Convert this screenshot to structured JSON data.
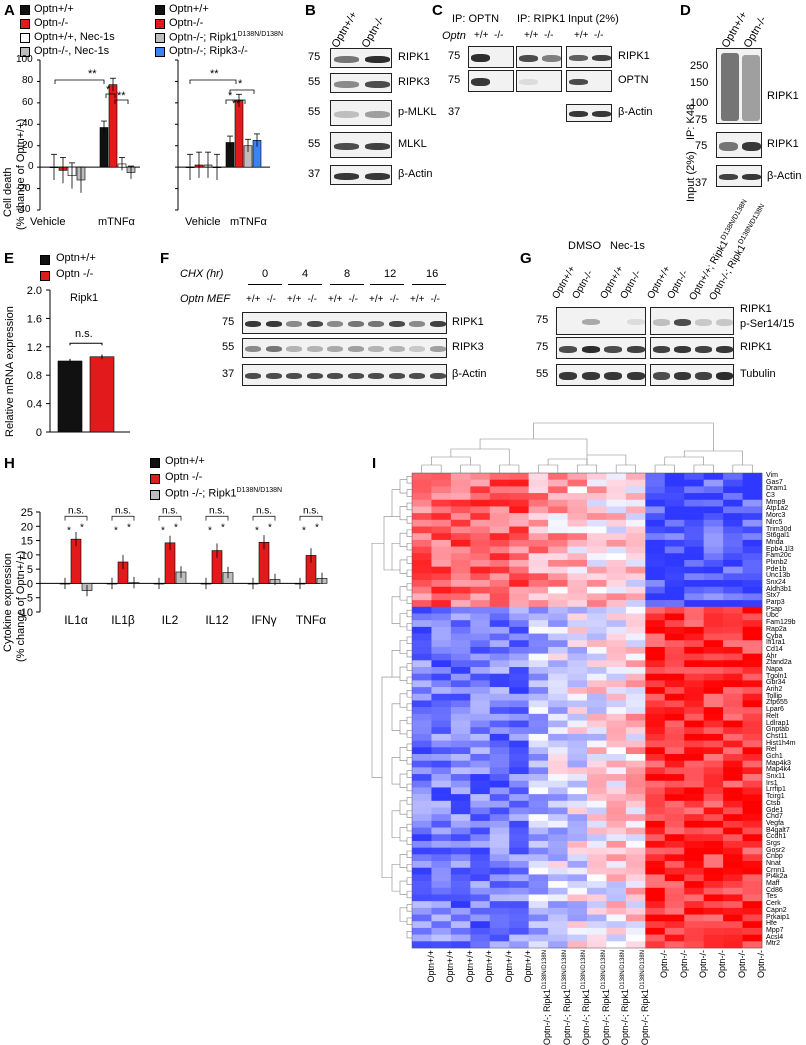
{
  "colors": {
    "wt": "#111111",
    "ko": "#e31a1c",
    "grey": "#bdbdbd",
    "blue": "#3b82f6",
    "white": "#ffffff"
  },
  "panelA": {
    "label": "A",
    "legend": [
      "Optn+/+",
      "Optn-/-",
      "Optn+/+, Nec-1s",
      "Optn-/-, Nec-1s",
      "Optn+/+",
      "Optn-/-",
      "Optn-/-; Ripk1",
      "D138N/D138N",
      "Optn-/-; Ripk3-/-"
    ],
    "ylabel1": "Cell death",
    "ylabel2": "(% change of Optn+/+)",
    "yticks": [
      "100",
      "80",
      "60",
      "40",
      "20",
      "0",
      "-20",
      "-40"
    ],
    "xcats": [
      "Vehicle",
      "mTNFα"
    ],
    "sig": [
      "**",
      "*",
      "**",
      "**",
      "*",
      "**",
      "*"
    ],
    "chart_left": {
      "type": "bar",
      "categories": [
        "Vehicle",
        "mTNFα"
      ],
      "series": [
        {
          "name": "Optn+/+",
          "values": [
            0,
            37
          ]
        },
        {
          "name": "Optn-/-",
          "values": [
            -3,
            77
          ]
        },
        {
          "name": "Optn+/+, Nec-1s",
          "values": [
            -8,
            3
          ]
        },
        {
          "name": "Optn-/-, Nec-1s",
          "values": [
            -12,
            -5
          ]
        }
      ],
      "ylim": [
        -40,
        100
      ]
    },
    "chart_right": {
      "type": "bar",
      "categories": [
        "Vehicle",
        "mTNFα"
      ],
      "series": [
        {
          "name": "Optn+/+",
          "values": [
            0,
            23
          ]
        },
        {
          "name": "Optn-/-",
          "values": [
            2,
            62
          ]
        },
        {
          "name": "Optn-/-; Ripk1 D138N/D138N",
          "values": [
            2,
            20
          ]
        },
        {
          "name": "Optn-/-; Ripk3-/-",
          "values": [
            0,
            25
          ]
        }
      ],
      "ylim": [
        -40,
        100
      ]
    }
  },
  "panelB": {
    "label": "B",
    "cols": [
      "Optn+/+",
      "Optn-/-"
    ],
    "mw": [
      "75",
      "55",
      "55",
      "55",
      "37"
    ],
    "rows": [
      "RIPK1",
      "RIPK3",
      "p-MLKL",
      "MLKL",
      "β-Actin"
    ]
  },
  "panelC": {
    "label": "C",
    "ip1": "IP: OPTN",
    "ip2": "IP: RIPK1",
    "input": "Input (2%)",
    "optn": "Optn",
    "geno": [
      "+/+",
      "-/-",
      "+/+",
      "-/-",
      "+/+",
      "-/-"
    ],
    "mw": [
      "75",
      "75",
      "37"
    ],
    "rows": [
      "RIPK1",
      "OPTN",
      "β-Actin"
    ]
  },
  "panelD": {
    "label": "D",
    "cols": [
      "Optn+/+",
      "Optn-/-"
    ],
    "mw": [
      "250",
      "150",
      "100",
      "75",
      "75",
      "37"
    ],
    "ip": "IP: K48",
    "input": "Input (2%)",
    "rows": [
      "RIPK1",
      "RIPK1",
      "β-Actin"
    ]
  },
  "panelE": {
    "label": "E",
    "legend": [
      "Optn+/+",
      "Optn -/-"
    ],
    "gene": "Ripk1",
    "ylabel": "Relative mRNA expression",
    "yticks": [
      "2.0",
      "1.6",
      "1.2",
      "0.8",
      "0.4",
      "0"
    ],
    "sig": "n.s.",
    "chart_data": {
      "type": "bar",
      "categories": [
        "Optn+/+",
        "Optn-/-"
      ],
      "values": [
        1.0,
        1.06
      ],
      "ylim": [
        0,
        2.0
      ]
    }
  },
  "panelF": {
    "label": "F",
    "chx": "CHX (hr)",
    "times": [
      "0",
      "4",
      "8",
      "12",
      "16"
    ],
    "mef": "Optn MEF",
    "geno": [
      "+/+",
      "-/-",
      "+/+",
      "-/-",
      "+/+",
      "-/-",
      "+/+",
      "-/-",
      "+/+",
      "-/-"
    ],
    "mw": [
      "75",
      "55",
      "37"
    ],
    "rows": [
      "RIPK1",
      "RIPK3",
      "β-Actin"
    ]
  },
  "panelG": {
    "label": "G",
    "dmso": "DMSO",
    "nec": "Nec-1s",
    "cols": [
      "Optn+/+",
      "Optn-/-",
      "Optn+/+",
      "Optn-/-",
      "Optn+/+",
      "Optn-/-",
      "Optn+/+; Ripk1",
      "Optn-/-; Ripk1"
    ],
    "sup": "D138N/D138N",
    "mw": [
      "75",
      "75",
      "55"
    ],
    "rows": [
      "RIPK1",
      "p-Ser14/15",
      "RIPK1",
      "Tubulin"
    ]
  },
  "panelH": {
    "label": "H",
    "legend": [
      "Optn+/+",
      "Optn -/-",
      "Optn -/-; Ripk1"
    ],
    "sup": "D138N/D138N",
    "ylabel1": "Cytokine expression",
    "ylabel2": "(% change of Optn+/+)",
    "yticks": [
      "25",
      "20",
      "15",
      "10",
      "5",
      "0",
      "-5",
      "-10"
    ],
    "sig": [
      "n.s.",
      "*",
      "*"
    ],
    "chart_data": {
      "type": "bar",
      "categories": [
        "IL1α",
        "IL1β",
        "IL2",
        "IL12",
        "IFNγ",
        "TNFα"
      ],
      "series": [
        {
          "name": "Optn+/+",
          "values": [
            0,
            0,
            0,
            0,
            0,
            0
          ]
        },
        {
          "name": "Optn-/-",
          "values": [
            15.5,
            7.5,
            14.2,
            11.5,
            14.4,
            9.8
          ]
        },
        {
          "name": "Optn-/-; Ripk1 D138N/D138N",
          "values": [
            -2.5,
            0.3,
            4,
            3.8,
            1.4,
            1.8
          ]
        }
      ],
      "ylim": [
        -10,
        25
      ]
    }
  },
  "panelI": {
    "label": "I",
    "genes": [
      "Vim",
      "Gas7",
      "Dram1",
      "C3",
      "Mmp9",
      "Atp1a2",
      "Morc3",
      "Nlrc5",
      "Trim30d",
      "St6gal1",
      "Mnda",
      "Epb4.1l3",
      "Fam20c",
      "Plxnb2",
      "Pde1b",
      "Unc13b",
      "Snx24",
      "Aldh3b1",
      "Stx7",
      "Parp3",
      "Psap",
      "Ubc",
      "Fam129b",
      "Rap2a",
      "Cyba",
      "Ifi1ra1",
      "Cd14",
      "Ahr",
      "Zfand2a",
      "Napa",
      "Tgoln1",
      "Gbr34",
      "Arih2",
      "Tollip",
      "Zfp655",
      "Lpar6",
      "Relt",
      "Ldlrap1",
      "Gnptab",
      "Chst11",
      "Hist1h4m",
      "Rel",
      "Gch1",
      "Map4k3",
      "Map4k4",
      "Snx11",
      "Irs1",
      "Lrrfip1",
      "Tcirg1",
      "Ctsb",
      "Gde1",
      "Chd7",
      "Vegfa",
      "B4galt7",
      "Ccdh1",
      "Srgs",
      "Gosr2",
      "Cnbp",
      "Nnat",
      "Crnn1",
      "Pi4k2a",
      "Maff",
      "Cd86",
      "Tes",
      "Cerk",
      "Capn2",
      "Prkaip1",
      "Hfe",
      "Mpp7",
      "Acsl4",
      "Mtr2"
    ],
    "cols": [
      "Optn+/+",
      "Optn+/+",
      "Optn+/+",
      "Optn+/+",
      "Optn+/+",
      "Optn+/+",
      "Optn-/-; Ripk1",
      "Optn-/-; Ripk1",
      "Optn-/-; Ripk1",
      "Optn-/-; Ripk1",
      "Optn-/-; Ripk1",
      "Optn-/-; Ripk1",
      "Optn-/-",
      "Optn-/-",
      "Optn-/-",
      "Optn-/-",
      "Optn-/-",
      "Optn-/-"
    ],
    "sup": "D138N/D138N"
  }
}
